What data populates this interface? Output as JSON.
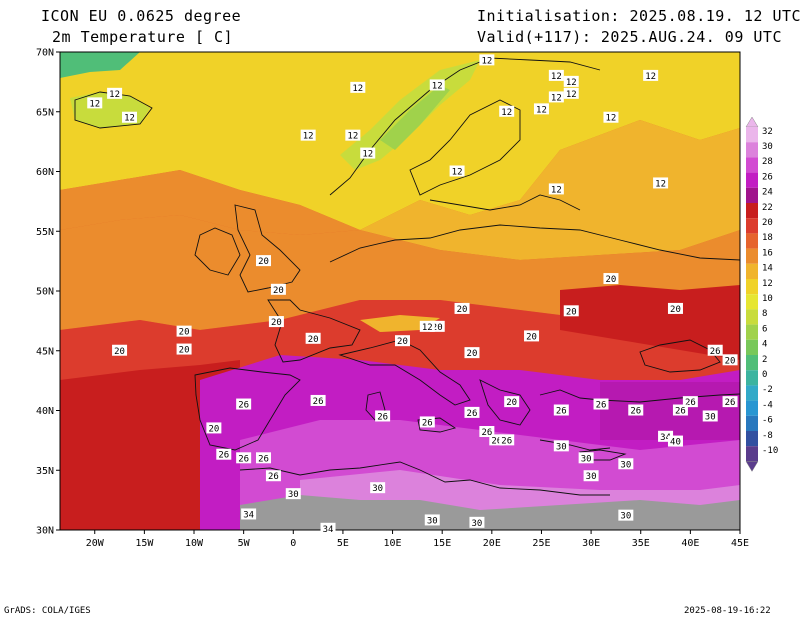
{
  "header": {
    "model": "ICON EU 0.0625 degree",
    "variable": "2m Temperature [ C]",
    "init": "Initialisation: 2025.08.19. 12 UTC",
    "valid": "Valid(+117): 2025.AUG.24. 09 UTC"
  },
  "map": {
    "lon_range": [
      -23.5,
      45
    ],
    "lat_range": [
      30,
      70
    ],
    "x_ticks": [
      "20W",
      "15W",
      "10W",
      "5W",
      "0",
      "5E",
      "10E",
      "15E",
      "20E",
      "25E",
      "30E",
      "35E",
      "40E",
      "45E"
    ],
    "y_ticks": [
      "70N",
      "65N",
      "60N",
      "55N",
      "50N",
      "45N",
      "40N",
      "35N",
      "30N"
    ],
    "contour_labels": [
      {
        "t": "12",
        "lon": -18.0,
        "lat": 66.5
      },
      {
        "t": "12",
        "lon": -20.0,
        "lat": 65.7
      },
      {
        "t": "12",
        "lon": -16.5,
        "lat": 64.5
      },
      {
        "t": "12",
        "lon": 6.5,
        "lat": 67.0
      },
      {
        "t": "12",
        "lon": 14.5,
        "lat": 67.2
      },
      {
        "t": "12",
        "lon": 19.5,
        "lat": 69.3
      },
      {
        "t": "12",
        "lon": 26.5,
        "lat": 68.0
      },
      {
        "t": "12",
        "lon": 28.0,
        "lat": 67.5
      },
      {
        "t": "12",
        "lon": 36.0,
        "lat": 68.0
      },
      {
        "t": "12",
        "lon": 21.5,
        "lat": 65.0
      },
      {
        "t": "12",
        "lon": 25.0,
        "lat": 65.2
      },
      {
        "t": "12",
        "lon": 26.5,
        "lat": 66.2
      },
      {
        "t": "12",
        "lon": 28.0,
        "lat": 66.5
      },
      {
        "t": "12",
        "lon": 6.0,
        "lat": 63.0
      },
      {
        "t": "12",
        "lon": 1.5,
        "lat": 63.0
      },
      {
        "t": "12",
        "lon": 7.5,
        "lat": 61.5
      },
      {
        "t": "12",
        "lon": 16.5,
        "lat": 60.0
      },
      {
        "t": "12",
        "lon": 37.0,
        "lat": 59.0
      },
      {
        "t": "12",
        "lon": 26.5,
        "lat": 58.5
      },
      {
        "t": "12",
        "lon": 32.0,
        "lat": 64.5
      },
      {
        "t": "20",
        "lon": -3.0,
        "lat": 52.5
      },
      {
        "t": "20",
        "lon": -1.5,
        "lat": 50.1
      },
      {
        "t": "20",
        "lon": -1.7,
        "lat": 47.4
      },
      {
        "t": "20",
        "lon": 2.0,
        "lat": 46.0
      },
      {
        "t": "20",
        "lon": -17.5,
        "lat": 45.0
      },
      {
        "t": "20",
        "lon": -11.0,
        "lat": 45.1
      },
      {
        "t": "20",
        "lon": -11.0,
        "lat": 46.6
      },
      {
        "t": "20",
        "lon": -8.0,
        "lat": 38.5
      },
      {
        "t": "20",
        "lon": 17.0,
        "lat": 48.5
      },
      {
        "t": "20",
        "lon": 14.5,
        "lat": 47.0
      },
      {
        "t": "20",
        "lon": 11.0,
        "lat": 45.8
      },
      {
        "t": "20",
        "lon": 18.0,
        "lat": 44.8
      },
      {
        "t": "20",
        "lon": 22.0,
        "lat": 40.7
      },
      {
        "t": "20",
        "lon": 32.0,
        "lat": 51.0
      },
      {
        "t": "20",
        "lon": 24.0,
        "lat": 46.2
      },
      {
        "t": "20",
        "lon": 28.0,
        "lat": 48.3
      },
      {
        "t": "20",
        "lon": 38.5,
        "lat": 48.5
      },
      {
        "t": "20",
        "lon": 44.0,
        "lat": 44.2
      },
      {
        "t": "12",
        "lon": 13.5,
        "lat": 47.0
      },
      {
        "t": "26",
        "lon": -5.0,
        "lat": 40.5
      },
      {
        "t": "26",
        "lon": 2.5,
        "lat": 40.8
      },
      {
        "t": "26",
        "lon": 9.0,
        "lat": 39.5
      },
      {
        "t": "26",
        "lon": 13.5,
        "lat": 39.0
      },
      {
        "t": "26",
        "lon": 18.0,
        "lat": 39.8
      },
      {
        "t": "26",
        "lon": 20.5,
        "lat": 37.5
      },
      {
        "t": "26",
        "lon": 19.5,
        "lat": 38.2
      },
      {
        "t": "26",
        "lon": 21.5,
        "lat": 37.5
      },
      {
        "t": "26",
        "lon": 27.0,
        "lat": 40.0
      },
      {
        "t": "26",
        "lon": 31.0,
        "lat": 40.5
      },
      {
        "t": "26",
        "lon": 34.5,
        "lat": 40.0
      },
      {
        "t": "26",
        "lon": 40.0,
        "lat": 40.7
      },
      {
        "t": "26",
        "lon": 39.0,
        "lat": 40.0
      },
      {
        "t": "26",
        "lon": 42.5,
        "lat": 45.0
      },
      {
        "t": "26",
        "lon": -7.0,
        "lat": 36.3
      },
      {
        "t": "26",
        "lon": -3.0,
        "lat": 36.0
      },
      {
        "t": "26",
        "lon": -2.0,
        "lat": 34.5
      },
      {
        "t": "26",
        "lon": -5.0,
        "lat": 36.0
      },
      {
        "t": "26",
        "lon": 44.0,
        "lat": 40.7
      },
      {
        "t": "30",
        "lon": 0.0,
        "lat": 33.0
      },
      {
        "t": "30",
        "lon": 8.5,
        "lat": 33.5
      },
      {
        "t": "30",
        "lon": 27.0,
        "lat": 37.0
      },
      {
        "t": "30",
        "lon": 29.5,
        "lat": 36.0
      },
      {
        "t": "30",
        "lon": 33.5,
        "lat": 35.5
      },
      {
        "t": "30",
        "lon": 30.0,
        "lat": 34.5
      },
      {
        "t": "30",
        "lon": 42.0,
        "lat": 39.5
      },
      {
        "t": "30",
        "lon": 14.0,
        "lat": 30.8
      },
      {
        "t": "30",
        "lon": 18.5,
        "lat": 30.6
      },
      {
        "t": "30",
        "lon": 33.5,
        "lat": 31.2
      },
      {
        "t": "34",
        "lon": -4.5,
        "lat": 31.3
      },
      {
        "t": "34",
        "lon": 3.5,
        "lat": 30.1
      },
      {
        "t": "34",
        "lon": 37.5,
        "lat": 37.8
      },
      {
        "t": "40",
        "lon": 38.5,
        "lat": 37.4
      }
    ]
  },
  "colorbar": {
    "labels": [
      "32",
      "30",
      "28",
      "26",
      "24",
      "22",
      "20",
      "18",
      "16",
      "14",
      "12",
      "10",
      "8",
      "6",
      "4",
      "2",
      "0",
      "-2",
      "-4",
      "-6",
      "-8",
      "-10"
    ],
    "colors": [
      "#ebb6eb",
      "#dc82dc",
      "#d24bd2",
      "#c21dc3",
      "#a0148c",
      "#c81e1e",
      "#dc3c2d",
      "#e6642d",
      "#eb8c2d",
      "#f0b42d",
      "#f0d228",
      "#e6e632",
      "#c8dc3c",
      "#a0d24b",
      "#78c85a",
      "#50be78",
      "#3cb4a0",
      "#32aac8",
      "#2896d2",
      "#2878be",
      "#3250a0",
      "#5a3c8c"
    ]
  },
  "footer": {
    "left": "GrADS: COLA/IGES",
    "right": "2025-08-19-16:22"
  }
}
